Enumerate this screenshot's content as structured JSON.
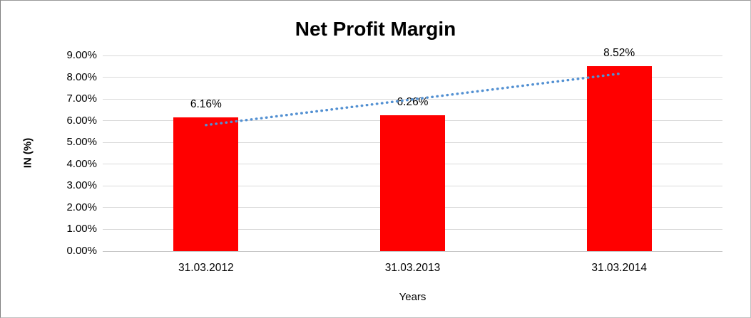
{
  "chart_data": {
    "type": "bar",
    "title": "Net Profit Margin",
    "xlabel": "Years",
    "ylabel": "IN (%)",
    "categories": [
      "31.03.2012",
      "31.03.2013",
      "31.03.2014"
    ],
    "values": [
      6.16,
      6.26,
      8.52
    ],
    "value_labels": [
      "6.16%",
      "6.26%",
      "8.52%"
    ],
    "ylim": [
      0,
      9
    ],
    "yticks": [
      {
        "value": 0,
        "label": "0.00%"
      },
      {
        "value": 1,
        "label": "1.00%"
      },
      {
        "value": 2,
        "label": "2.00%"
      },
      {
        "value": 3,
        "label": "3.00%"
      },
      {
        "value": 4,
        "label": "4.00%"
      },
      {
        "value": 5,
        "label": "5.00%"
      },
      {
        "value": 6,
        "label": "6.00%"
      },
      {
        "value": 7,
        "label": "7.00%"
      },
      {
        "value": 8,
        "label": "8.00%"
      },
      {
        "value": 9,
        "label": "9.00%"
      }
    ],
    "grid": true,
    "legend": "none",
    "bar_color": "#ff0000",
    "trendline": {
      "type": "linear",
      "style": "dotted",
      "color": "#5290d2",
      "start_value": 5.8,
      "end_value": 8.16
    }
  }
}
